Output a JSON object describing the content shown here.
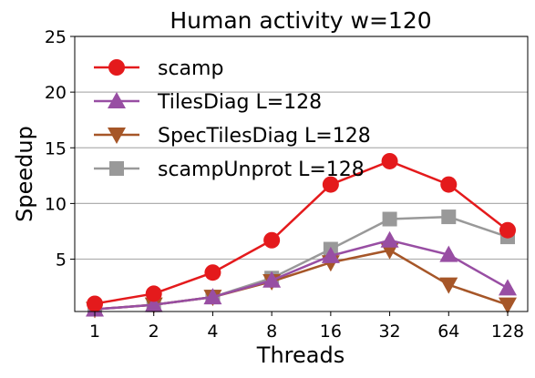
{
  "chart_data": {
    "type": "line",
    "title": "Human activity w=120",
    "xlabel": "Threads",
    "ylabel": "Speedup",
    "categories": [
      "1",
      "2",
      "4",
      "8",
      "16",
      "32",
      "64",
      "128"
    ],
    "ylim": [
      0.3,
      25
    ],
    "yticks": [
      5,
      10,
      15,
      20,
      25
    ],
    "grid": "horizontal",
    "legend_position": "upper-left",
    "series": [
      {
        "name": "scamp",
        "color": "#e41a1c",
        "marker": "circle",
        "values": [
          1.0,
          1.9,
          3.8,
          6.7,
          11.7,
          13.8,
          11.7,
          7.6
        ]
      },
      {
        "name": "TilesDiag L=128",
        "color": "#984ea3",
        "marker": "triangle-up",
        "values": [
          0.5,
          0.9,
          1.6,
          3.1,
          5.3,
          6.7,
          5.4,
          2.4
        ]
      },
      {
        "name": "SpecTilesDiag L=128",
        "color": "#a65628",
        "marker": "triangle-down",
        "values": [
          0.5,
          0.9,
          1.6,
          3.0,
          4.7,
          5.8,
          2.7,
          0.9
        ]
      },
      {
        "name": "scampUnprot L=128",
        "color": "#999999",
        "marker": "square",
        "values": [
          0.5,
          0.9,
          1.6,
          3.3,
          5.9,
          8.6,
          8.8,
          7.0
        ]
      }
    ]
  }
}
